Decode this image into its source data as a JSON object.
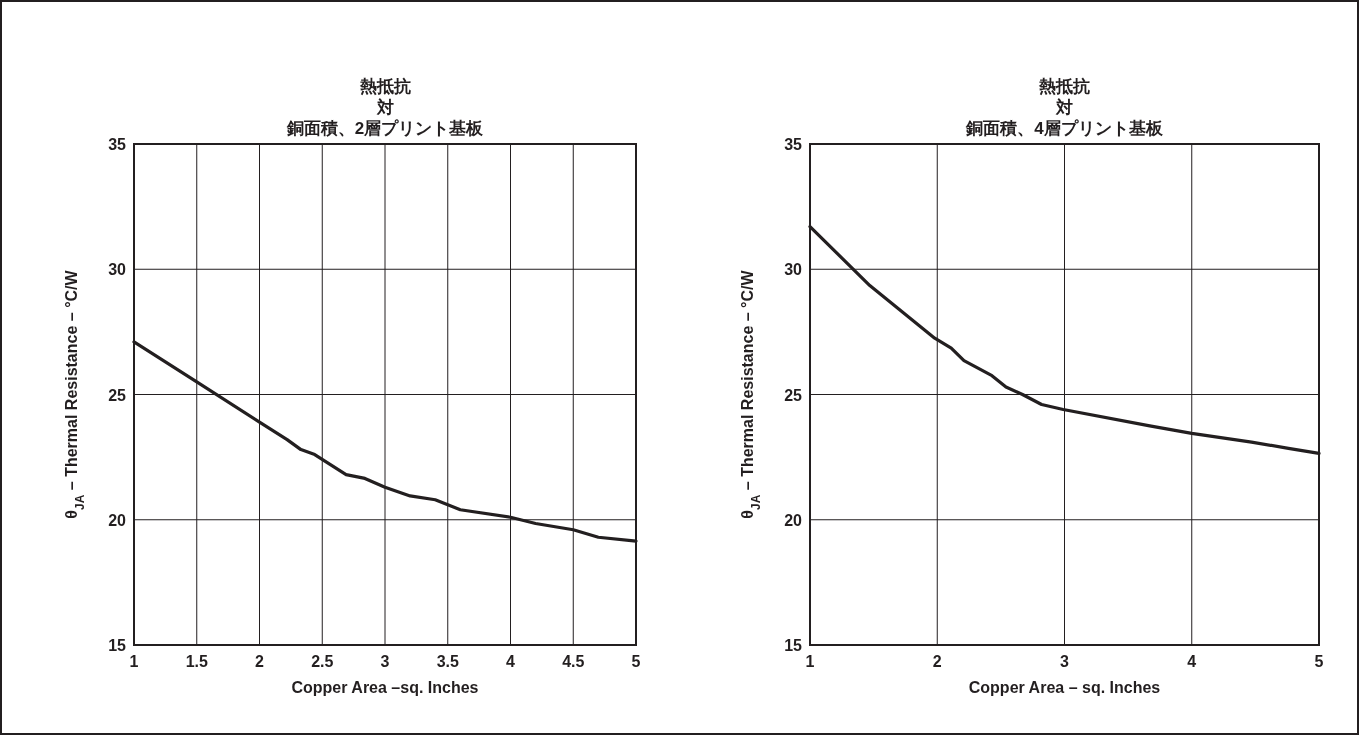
{
  "chart_data": [
    {
      "type": "line",
      "title": "熱抵抗",
      "subtitle": "対",
      "annotations": [
        "銅面積、2層プリント基板"
      ],
      "xlabel": "Copper Area –sq. Inches",
      "ylabel": "θ$_{JA}$ – Thermal Resistance – °C/W",
      "xlim": [
        1,
        5
      ],
      "xticks": [
        1,
        1.5,
        2,
        2.5,
        3,
        3.5,
        4,
        4.5,
        5
      ],
      "ylim": [
        15,
        35
      ],
      "yticks": [
        15,
        20,
        25,
        30,
        35
      ],
      "grid": true,
      "marker": "none",
      "line_style": "solid",
      "series": [
        {
          "color": "#231f20",
          "x": [
            1,
            1.5,
            2,
            2.22,
            2.33,
            2.44,
            2.69,
            2.84,
            3,
            3.2,
            3.4,
            3.6,
            4,
            4.2,
            4.5,
            4.7,
            5
          ],
          "values": [
            27.1,
            25.5,
            23.9,
            23.2,
            22.8,
            22.6,
            21.8,
            21.65,
            21.3,
            20.95,
            20.8,
            20.4,
            20.1,
            19.85,
            19.6,
            19.3,
            19.15
          ]
        }
      ]
    },
    {
      "type": "line",
      "title": "熱抵抗",
      "subtitle": "対",
      "annotations": [
        "銅面積、4層プリント基板"
      ],
      "xlabel": "Copper Area – sq. Inches",
      "ylabel": "θ$_{JA}$ – Thermal Resistance – °C/W",
      "xlim": [
        1,
        5
      ],
      "xticks": [
        1,
        2,
        3,
        4,
        5
      ],
      "ylim": [
        15,
        35
      ],
      "yticks": [
        15,
        20,
        25,
        30,
        35
      ],
      "grid": true,
      "marker": "none",
      "line_style": "solid",
      "series": [
        {
          "color": "#231f20",
          "x": [
            1,
            1.47,
            1.98,
            2.11,
            2.21,
            2.43,
            2.54,
            2.67,
            2.82,
            2.99,
            3.67,
            4,
            4.47,
            4.76,
            5
          ],
          "values": [
            31.7,
            29.35,
            27.25,
            26.85,
            26.35,
            25.75,
            25.3,
            25.0,
            24.6,
            24.4,
            23.75,
            23.45,
            23.1,
            22.85,
            22.65
          ]
        }
      ]
    }
  ]
}
